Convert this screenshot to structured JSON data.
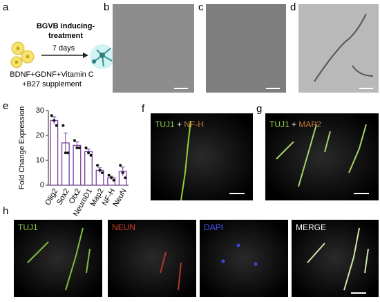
{
  "panels": {
    "a": {
      "letter": "a",
      "title": [
        "BGVB inducing-",
        "treatment"
      ],
      "duration": "7 days",
      "supplement": [
        "BDNF+GDNF+Vitamin C",
        "+B27 supplement"
      ]
    },
    "b": {
      "letter": "b"
    },
    "c": {
      "letter": "c"
    },
    "d": {
      "letter": "d"
    },
    "e": {
      "letter": "e"
    },
    "f": {
      "letter": "f",
      "labels": [
        "TUJ1",
        "+",
        "NF-H"
      ]
    },
    "g": {
      "letter": "g",
      "labels": [
        "TUJ1",
        "+",
        "MAP2"
      ]
    },
    "h": {
      "letter": "h",
      "labels": [
        "TUJ1",
        "NEUN",
        "DAPI",
        "MERGE"
      ]
    }
  },
  "chart_data": {
    "type": "bar",
    "y_label": "Fold Change Expression",
    "categories": [
      "Olig2",
      "Sox2",
      "Otx2",
      "NeuroD1",
      "Map2",
      "NF-H",
      "NeuN"
    ],
    "values": [
      26,
      17,
      16,
      13.5,
      6,
      3,
      5.5
    ],
    "errors": [
      1.5,
      4,
      1.5,
      1,
      1,
      0.6,
      1.8
    ],
    "points": [
      [
        28,
        26,
        24
      ],
      [
        24,
        13,
        13
      ],
      [
        18,
        15,
        15
      ],
      [
        15,
        13,
        12
      ],
      [
        8,
        6,
        5
      ],
      [
        4,
        3,
        2
      ],
      [
        8,
        5,
        3
      ]
    ],
    "color": "#7b3fa0",
    "point_color": "#111111",
    "ylim": [
      0,
      30
    ],
    "yticks": [
      0,
      10,
      20,
      30
    ]
  }
}
